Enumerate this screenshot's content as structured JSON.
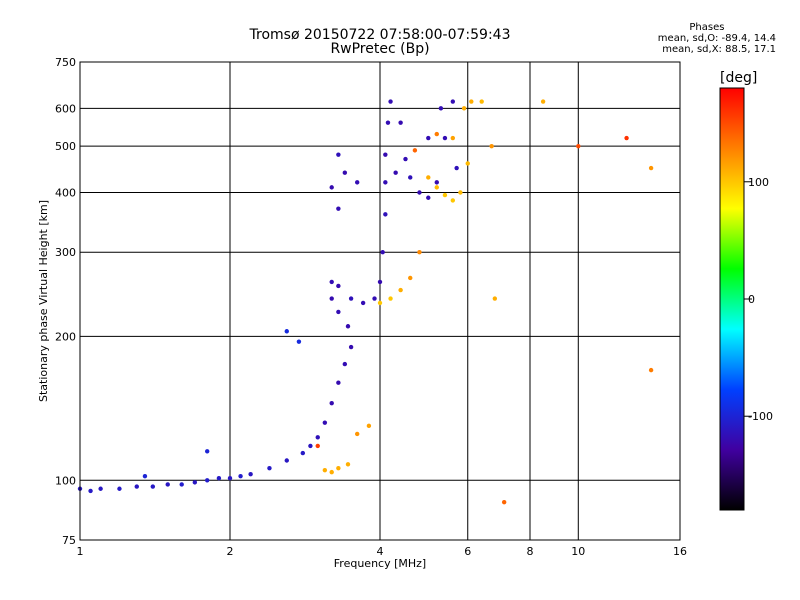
{
  "chart_data": {
    "type": "scatter",
    "title_line1": "Tromsø 20150722 07:58:00-07:59:43",
    "title_line2": "RwPretec (Bp)",
    "xlabel": "Frequency [MHz]",
    "ylabel": "Stationary phase Virtual Height [km]",
    "x_scale": "log",
    "y_scale": "log",
    "xlim": [
      1,
      16
    ],
    "ylim": [
      75,
      750
    ],
    "x_ticks": [
      1,
      2,
      4,
      6,
      8,
      10,
      16
    ],
    "y_ticks": [
      75,
      100,
      200,
      300,
      400,
      500,
      600,
      750
    ],
    "grid": true,
    "phases_box": {
      "header": "Phases",
      "line_o": "mean, sd,O: -89.4, 14.4",
      "line_x": "mean, sd,X:  88.5, 17.1"
    },
    "colorbar": {
      "label": "[deg]",
      "range": [
        -180,
        180
      ],
      "ticks": [
        100,
        0,
        -100
      ],
      "colors": [
        "#ff0000",
        "#ff8000",
        "#ffff00",
        "#00ff00",
        "#00ffff",
        "#0040ff",
        "#4000a0",
        "#000000"
      ]
    },
    "series": [
      {
        "points": [
          [
            1.0,
            96,
            -110
          ],
          [
            1.05,
            95,
            -108
          ],
          [
            1.1,
            96,
            -110
          ],
          [
            1.2,
            96,
            -108
          ],
          [
            1.3,
            97,
            -110
          ],
          [
            1.4,
            97,
            -108
          ],
          [
            1.5,
            98,
            -110
          ],
          [
            1.6,
            98,
            -105
          ],
          [
            1.7,
            99,
            -110
          ],
          [
            1.8,
            100,
            -105
          ],
          [
            1.9,
            101,
            -108
          ],
          [
            2.0,
            101,
            -110
          ],
          [
            2.1,
            102,
            -105
          ],
          [
            2.2,
            103,
            -110
          ],
          [
            2.4,
            106,
            -108
          ],
          [
            2.6,
            110,
            -110
          ],
          [
            2.8,
            114,
            -108
          ],
          [
            2.9,
            118,
            -112
          ],
          [
            3.0,
            123,
            -115
          ],
          [
            3.1,
            132,
            -118
          ],
          [
            3.2,
            145,
            -120
          ],
          [
            3.3,
            160,
            -120
          ],
          [
            3.4,
            175,
            -118
          ],
          [
            3.5,
            190,
            -120
          ],
          [
            3.45,
            210,
            -120
          ],
          [
            3.3,
            225,
            -118
          ],
          [
            3.2,
            240,
            -120
          ],
          [
            3.2,
            260,
            -118
          ],
          [
            3.3,
            255,
            -120
          ],
          [
            3.5,
            240,
            -115
          ],
          [
            3.7,
            235,
            -118
          ],
          [
            3.9,
            240,
            -118
          ],
          [
            4.0,
            260,
            -120
          ],
          [
            4.05,
            300,
            -118
          ],
          [
            4.1,
            360,
            -115
          ],
          [
            4.1,
            420,
            -118
          ],
          [
            4.1,
            480,
            -120
          ],
          [
            4.15,
            560,
            -118
          ],
          [
            4.2,
            620,
            -118
          ],
          [
            4.4,
            560,
            -120
          ],
          [
            4.5,
            470,
            -118
          ],
          [
            4.6,
            430,
            -115
          ],
          [
            4.8,
            400,
            -120
          ],
          [
            5.0,
            390,
            -118
          ],
          [
            5.2,
            420,
            -120
          ],
          [
            5.4,
            520,
            -118
          ],
          [
            5.6,
            620,
            -118
          ],
          [
            5.3,
            600,
            -118
          ],
          [
            5.0,
            520,
            -118
          ],
          [
            5.7,
            450,
            -115
          ],
          [
            4.3,
            440,
            -120
          ],
          [
            3.6,
            420,
            -118
          ],
          [
            3.4,
            440,
            -120
          ],
          [
            3.3,
            480,
            -115
          ],
          [
            3.2,
            410,
            -120
          ],
          [
            3.3,
            370,
            -118
          ],
          [
            2.6,
            205,
            -95
          ],
          [
            2.75,
            195,
            -95
          ],
          [
            1.8,
            115,
            -100
          ],
          [
            1.35,
            102,
            -100
          ]
        ]
      },
      {
        "points": [
          [
            3.1,
            105,
            110
          ],
          [
            3.2,
            104,
            110
          ],
          [
            3.3,
            106,
            110
          ],
          [
            3.45,
            108,
            110
          ],
          [
            3.6,
            125,
            120
          ],
          [
            3.8,
            130,
            115
          ],
          [
            4.0,
            235,
            100
          ],
          [
            4.2,
            240,
            100
          ],
          [
            4.4,
            250,
            110
          ],
          [
            4.6,
            265,
            120
          ],
          [
            4.8,
            300,
            125
          ],
          [
            5.0,
            430,
            110
          ],
          [
            5.2,
            410,
            105
          ],
          [
            5.4,
            395,
            100
          ],
          [
            5.6,
            385,
            100
          ],
          [
            5.8,
            400,
            105
          ],
          [
            6.0,
            460,
            105
          ],
          [
            6.1,
            620,
            110
          ],
          [
            5.9,
            600,
            110
          ],
          [
            5.6,
            520,
            115
          ],
          [
            5.2,
            530,
            130
          ],
          [
            4.7,
            490,
            140
          ],
          [
            6.4,
            620,
            105
          ],
          [
            6.7,
            500,
            120
          ],
          [
            6.8,
            240,
            110
          ],
          [
            8.5,
            620,
            110
          ],
          [
            10.0,
            500,
            150
          ],
          [
            12.5,
            520,
            160
          ],
          [
            14.0,
            450,
            120
          ],
          [
            14.0,
            170,
            130
          ],
          [
            7.1,
            90,
            140
          ],
          [
            3.0,
            118,
            155
          ]
        ]
      }
    ]
  }
}
